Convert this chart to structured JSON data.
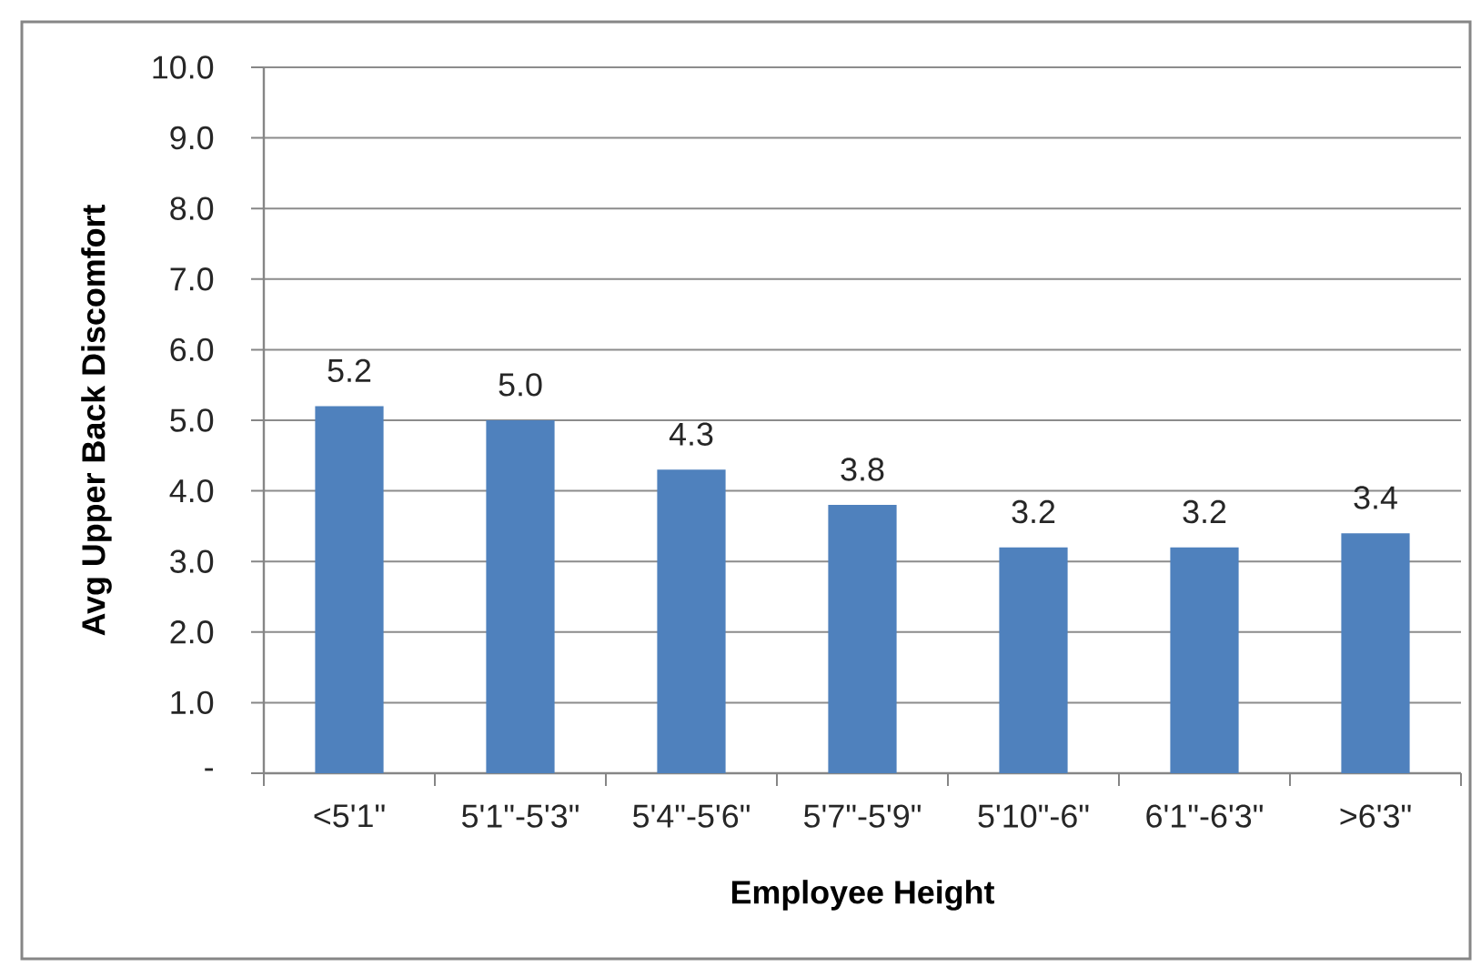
{
  "chart_data": {
    "type": "bar",
    "xlabel": "Employee Height",
    "ylabel": "Avg Upper Back Discomfort",
    "categories": [
      "<5'1\"",
      "5'1\"-5'3\"",
      "5'4\"-5'6\"",
      "5'7\"-5'9\"",
      "5'10\"-6\"",
      "6'1\"-6'3\"",
      ">6'3\""
    ],
    "values": [
      5.2,
      5.0,
      4.3,
      3.8,
      3.2,
      3.2,
      3.4
    ],
    "value_labels": [
      "5.2",
      "5.0",
      "4.3",
      "3.8",
      "3.2",
      "3.2",
      "3.4"
    ],
    "color": "#4f81bd",
    "ylim": [
      0,
      10
    ],
    "yticks": [
      {
        "value": 0,
        "label": "-"
      },
      {
        "value": 1,
        "label": "1.0"
      },
      {
        "value": 2,
        "label": "2.0"
      },
      {
        "value": 3,
        "label": "3.0"
      },
      {
        "value": 4,
        "label": "4.0"
      },
      {
        "value": 5,
        "label": "5.0"
      },
      {
        "value": 6,
        "label": "6.0"
      },
      {
        "value": 7,
        "label": "7.0"
      },
      {
        "value": 8,
        "label": "8.0"
      },
      {
        "value": 9,
        "label": "9.0"
      },
      {
        "value": 10,
        "label": "10.0"
      }
    ],
    "grid": "y"
  }
}
